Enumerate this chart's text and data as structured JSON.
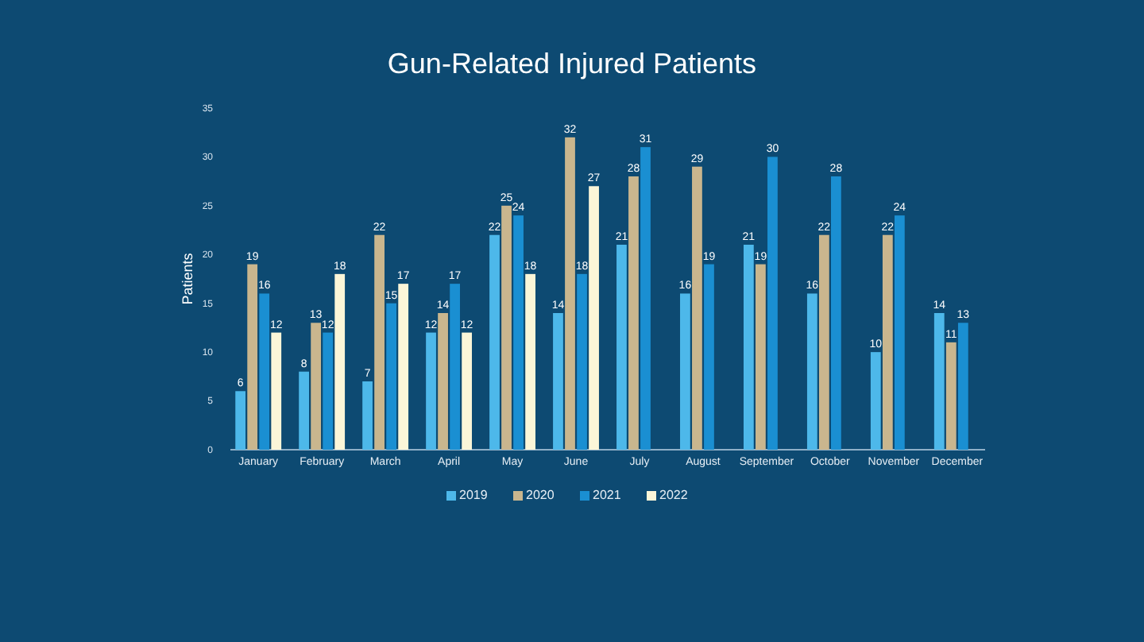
{
  "chart_data": {
    "type": "bar",
    "title": "Gun-Related Injured Patients",
    "ylabel": "Patients",
    "categories": [
      "January",
      "February",
      "March",
      "April",
      "May",
      "June",
      "July",
      "August",
      "September",
      "October",
      "November",
      "December"
    ],
    "series": [
      {
        "name": "2019",
        "color": "#4db8ea",
        "values": [
          6,
          8,
          7,
          12,
          22,
          14,
          21,
          16,
          21,
          16,
          10,
          14
        ]
      },
      {
        "name": "2020",
        "color": "#c9b68e",
        "values": [
          19,
          13,
          22,
          14,
          25,
          32,
          28,
          29,
          19,
          22,
          22,
          11
        ]
      },
      {
        "name": "2021",
        "color": "#1a8fd2",
        "values": [
          16,
          12,
          15,
          17,
          24,
          18,
          31,
          19,
          30,
          28,
          24,
          13
        ]
      },
      {
        "name": "2022",
        "color": "#fbf6d8",
        "values": [
          12,
          18,
          17,
          12,
          18,
          27,
          null,
          null,
          null,
          null,
          null,
          null
        ]
      }
    ],
    "ylim": [
      0,
      35
    ],
    "yticks": [
      0,
      5,
      10,
      15,
      20,
      25,
      30,
      35
    ],
    "grid": false,
    "legend": "bottom",
    "data_labels": true
  }
}
